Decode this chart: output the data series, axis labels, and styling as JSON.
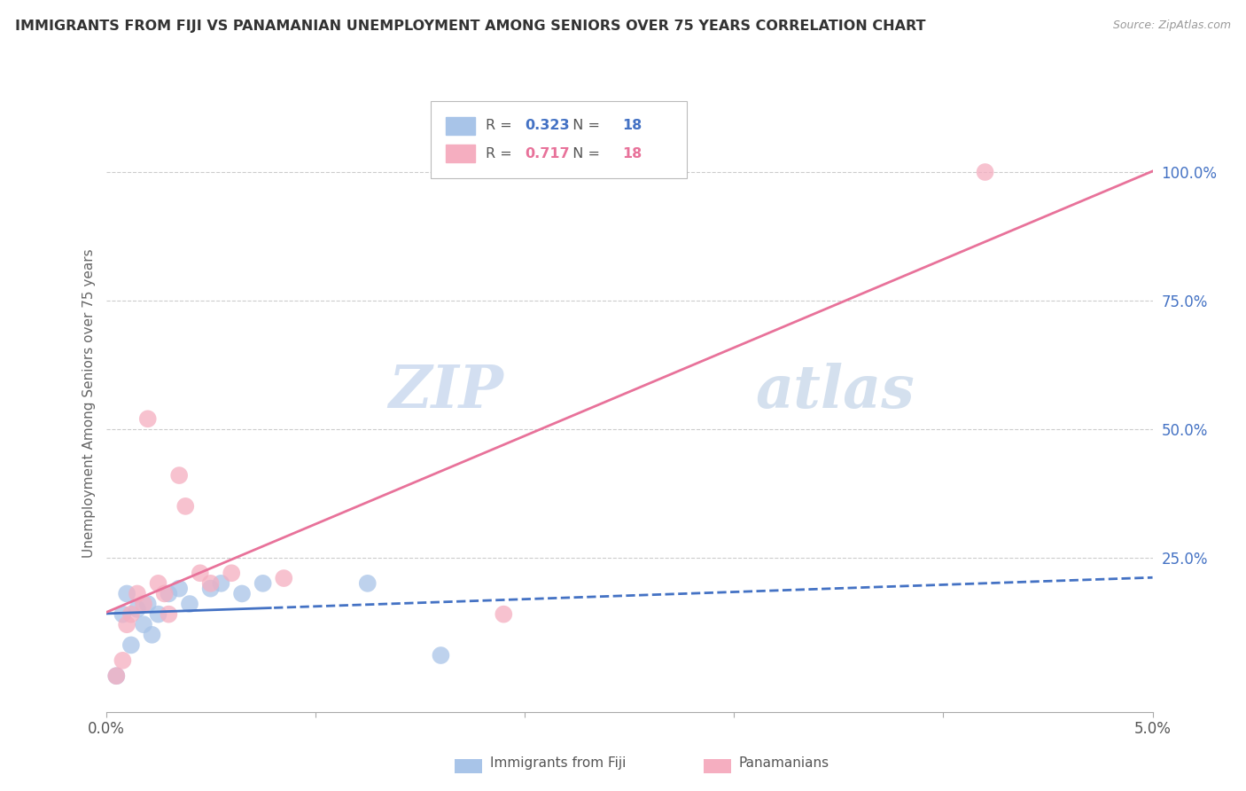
{
  "title": "IMMIGRANTS FROM FIJI VS PANAMANIAN UNEMPLOYMENT AMONG SENIORS OVER 75 YEARS CORRELATION CHART",
  "source": "Source: ZipAtlas.com",
  "ylabel": "Unemployment Among Seniors over 75 years",
  "xlim": [
    0.0,
    5.0
  ],
  "ylim": [
    -5.0,
    115.0
  ],
  "ytick_values_right": [
    100.0,
    75.0,
    50.0,
    25.0
  ],
  "fiji_R": "0.323",
  "fiji_N": "18",
  "panama_R": "0.717",
  "panama_N": "18",
  "fiji_color": "#a8c4e8",
  "panama_color": "#f5aec0",
  "fiji_line_color": "#4472c4",
  "panama_line_color": "#e8729a",
  "watermark_color": "#dde8f5",
  "fiji_x": [
    0.05,
    0.08,
    0.1,
    0.12,
    0.15,
    0.18,
    0.2,
    0.22,
    0.25,
    0.3,
    0.35,
    0.4,
    0.5,
    0.55,
    0.65,
    0.75,
    1.25,
    1.6
  ],
  "fiji_y": [
    2.0,
    14.0,
    18.0,
    8.0,
    15.0,
    12.0,
    16.0,
    10.0,
    14.0,
    18.0,
    19.0,
    16.0,
    19.0,
    20.0,
    18.0,
    20.0,
    20.0,
    6.0
  ],
  "panama_x": [
    0.05,
    0.08,
    0.1,
    0.12,
    0.15,
    0.18,
    0.2,
    0.25,
    0.28,
    0.3,
    0.35,
    0.38,
    0.45,
    0.5,
    0.6,
    0.85,
    1.9,
    4.2
  ],
  "panama_y": [
    2.0,
    5.0,
    12.0,
    14.0,
    18.0,
    16.0,
    52.0,
    20.0,
    18.0,
    14.0,
    41.0,
    35.0,
    22.0,
    20.0,
    22.0,
    21.0,
    14.0,
    100.0
  ]
}
